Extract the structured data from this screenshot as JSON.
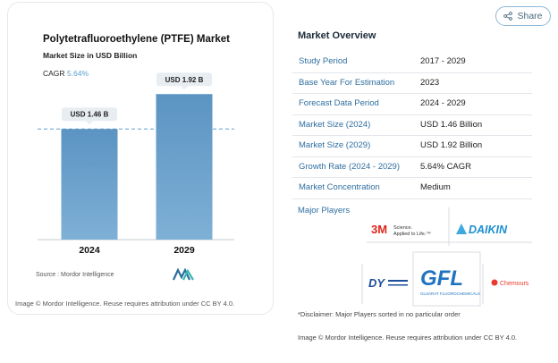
{
  "chart": {
    "title": "Polytetrafluoroethylene (PTFE) Market",
    "subtitle": "Market Size in USD Billion",
    "cagr_label": "CAGR",
    "cagr_value": "5.64%",
    "bar_labels": [
      "USD 1.46 B",
      "USD 1.92 B"
    ],
    "source": "Source : Mordor Intelligence",
    "image_credit": "Image © Mordor Intelligence. Reuse requires attribution under CC BY 4.0."
  },
  "chart_data": {
    "type": "bar",
    "title": "Polytetrafluoroethylene (PTFE) Market",
    "subtitle": "Market Size in USD Billion",
    "categories": [
      "2024",
      "2029"
    ],
    "values": [
      1.46,
      1.92
    ],
    "ylim": [
      0,
      2.1
    ],
    "colors": {
      "bar_top": "#5b94c2",
      "bar_bottom": "#7fb0d6",
      "reference_line": "#5a9fcf"
    }
  },
  "share": {
    "label": "Share",
    "icon": "share-icon"
  },
  "overview": {
    "title": "Market Overview",
    "rows": [
      {
        "label": "Study Period",
        "value": "2017 - 2029"
      },
      {
        "label": "Base Year For Estimation",
        "value": "2023"
      },
      {
        "label": "Forecast Data Period",
        "value": "2024 - 2029"
      },
      {
        "label": "Market Size (2024)",
        "value": "USD 1.46 Billion"
      },
      {
        "label": "Market Size (2029)",
        "value": "USD 1.92 Billion"
      },
      {
        "label": "Growth Rate (2024 - 2029)",
        "value": "5.64% CAGR"
      },
      {
        "label": "Market Concentration",
        "value": "Medium"
      }
    ],
    "major_players_label": "Major Players",
    "players": [
      "3M",
      "Daikin",
      "Dongyue Federation",
      "Gujarat Fluorochemicals",
      "Chemours"
    ],
    "player_text": {
      "3m_mark": "3M",
      "3m_tag_1": "Science.",
      "3m_tag_2": "Applied to Life.™",
      "daikin": "DAIKIN",
      "dongyue": "DY",
      "gfl": "GFL",
      "gfl_sub": "GUJARAT FLUOROCHEMICALS",
      "chemours": "Chemours"
    },
    "disclaimer": "*Disclaimer: Major Players sorted in no particular order",
    "image_credit": "Image © Mordor Intelligence. Reuse requires attribution under CC BY 4.0."
  }
}
